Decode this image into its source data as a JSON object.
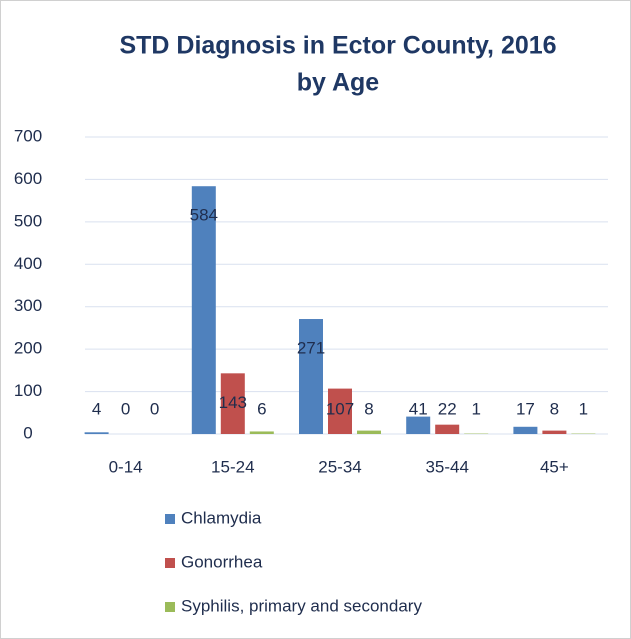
{
  "chart_data": {
    "type": "bar",
    "title": [
      "STD Diagnosis in Ector County, 2016",
      "by Age"
    ],
    "categories": [
      "0-14",
      "15-24",
      "25-34",
      "35-44",
      "45+"
    ],
    "series": [
      {
        "name": "Chlamydia",
        "color": "#4f81bd",
        "values": [
          4,
          584,
          271,
          41,
          17
        ]
      },
      {
        "name": "Gonorrhea",
        "color": "#c0504d",
        "values": [
          0,
          143,
          107,
          22,
          8
        ]
      },
      {
        "name": "Syphilis, primary and secondary",
        "color": "#9bbb59",
        "values": [
          0,
          6,
          8,
          1,
          1
        ]
      }
    ],
    "ylim": [
      0,
      700
    ],
    "yticks": [
      0,
      100,
      200,
      300,
      400,
      500,
      600,
      700
    ],
    "grid": true,
    "legend": "bottom"
  }
}
